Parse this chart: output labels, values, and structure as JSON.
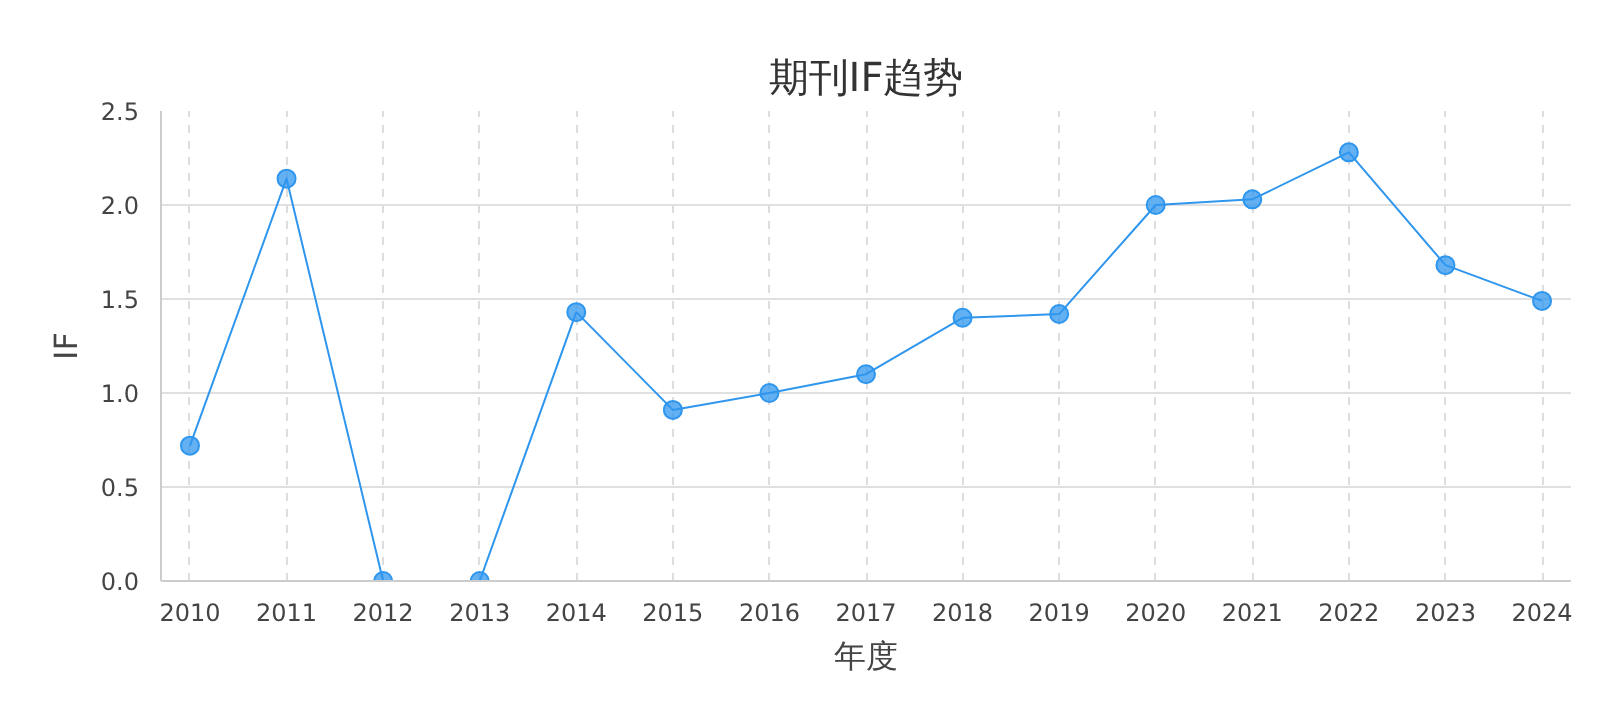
{
  "chart_data": {
    "type": "line",
    "title": "期刊IF趋势",
    "xlabel": "年度",
    "ylabel": "IF",
    "categories": [
      "2010",
      "2011",
      "2012",
      "2013",
      "2014",
      "2015",
      "2016",
      "2017",
      "2018",
      "2019",
      "2020",
      "2021",
      "2022",
      "2023",
      "2024"
    ],
    "series": [
      {
        "color": "#2f96ee",
        "values": [
          0.72,
          2.14,
          0,
          0,
          1.43,
          0.91,
          1.0,
          1.1,
          1.4,
          1.42,
          2.0,
          2.03,
          2.28,
          1.68,
          1.49
        ]
      }
    ],
    "ylim": [
      0,
      2.5
    ],
    "yticks": [
      {
        "value": 0,
        "label": "0.0"
      },
      {
        "value": 0.5,
        "label": "0.5"
      },
      {
        "value": 1,
        "label": "1.0"
      },
      {
        "value": 1.5,
        "label": "1.5"
      },
      {
        "value": 2,
        "label": "2.0"
      },
      {
        "value": 2.5,
        "label": "2.5"
      }
    ],
    "grid": true,
    "marker": "circle",
    "line_style": "solid"
  }
}
